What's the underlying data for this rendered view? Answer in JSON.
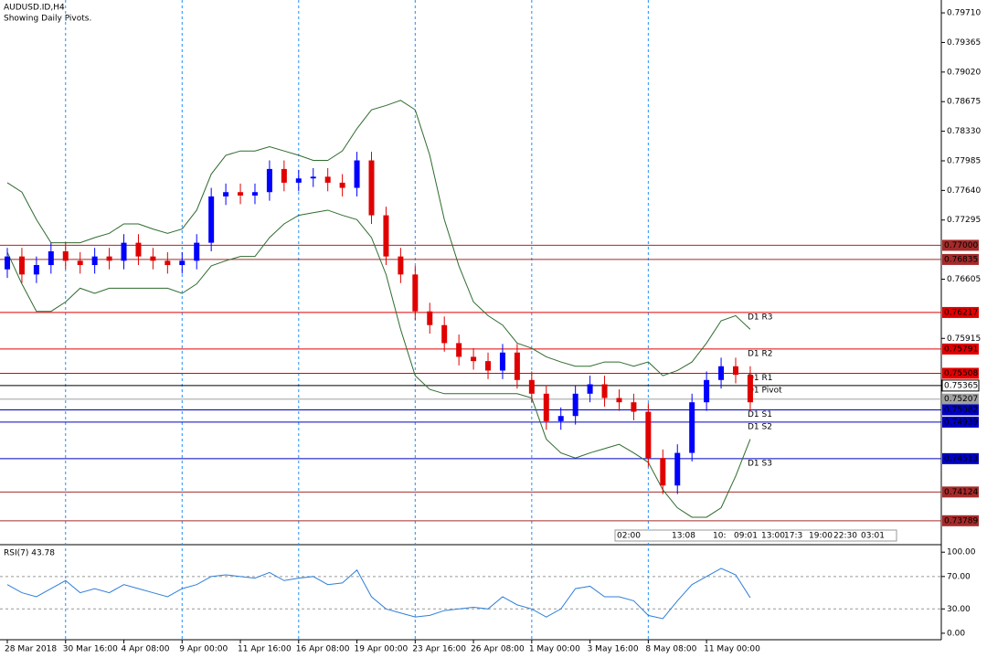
{
  "chart_data": [
    {
      "type": "candlestick",
      "title": "AUDUSD.ID,H4",
      "subtitle": "Showing Daily Pivots.",
      "categories": [
        "28 Mar 2018",
        null,
        null,
        null,
        "30 Mar 16:00",
        null,
        null,
        null,
        "4 Apr 08:00",
        null,
        null,
        null,
        "9 Apr 00:00",
        null,
        null,
        null,
        "11 Apr 16:00",
        null,
        null,
        null,
        "16 Apr 08:00",
        null,
        null,
        null,
        "19 Apr 00:00",
        null,
        null,
        null,
        "23 Apr 16:00",
        null,
        null,
        null,
        "26 Apr 08:00",
        null,
        null,
        null,
        "1 May 00:00",
        null,
        null,
        null,
        "3 May 16:00",
        null,
        null,
        null,
        "8 May 08:00",
        null,
        null,
        null,
        "11 May 00:00",
        null,
        null,
        null
      ],
      "open": [
        0.7672,
        0.7687,
        0.7666,
        0.7677,
        0.7693,
        0.7682,
        0.7677,
        0.7687,
        0.7682,
        0.7703,
        0.7687,
        0.7682,
        0.7677,
        0.7682,
        0.7703,
        0.7757,
        0.7762,
        0.7758,
        0.7762,
        0.7789,
        0.7773,
        0.7778,
        0.778,
        0.7773,
        0.7767,
        0.7799,
        0.7735,
        0.7687,
        0.7666,
        0.7623,
        0.7607,
        0.7586,
        0.757,
        0.7565,
        0.7554,
        0.7575,
        0.7543,
        0.7527,
        0.7495,
        0.7501,
        0.7527,
        0.7538,
        0.7522,
        0.7517,
        0.7506,
        0.7452,
        0.742,
        0.7458,
        0.7517,
        0.7543,
        0.7559,
        0.7549
      ],
      "high": [
        0.7697,
        0.7697,
        0.7687,
        0.7703,
        0.7703,
        0.7692,
        0.7697,
        0.7697,
        0.7713,
        0.7713,
        0.7697,
        0.7692,
        0.7692,
        0.7713,
        0.7767,
        0.7772,
        0.7772,
        0.7772,
        0.7799,
        0.7799,
        0.7788,
        0.779,
        0.779,
        0.7783,
        0.7809,
        0.7809,
        0.7745,
        0.7697,
        0.7676,
        0.7633,
        0.7617,
        0.7596,
        0.758,
        0.7575,
        0.7585,
        0.7585,
        0.7553,
        0.7537,
        0.7511,
        0.7537,
        0.7548,
        0.7548,
        0.7532,
        0.7527,
        0.7516,
        0.7462,
        0.7468,
        0.7527,
        0.7553,
        0.7569,
        0.7569,
        0.7559
      ],
      "low": [
        0.7662,
        0.7656,
        0.7656,
        0.7667,
        0.7672,
        0.7667,
        0.7667,
        0.7672,
        0.7672,
        0.7677,
        0.7672,
        0.7667,
        0.7667,
        0.7672,
        0.7693,
        0.7747,
        0.7748,
        0.7748,
        0.7752,
        0.7763,
        0.7763,
        0.7768,
        0.7763,
        0.7757,
        0.7757,
        0.7725,
        0.7677,
        0.7656,
        0.7613,
        0.7597,
        0.7576,
        0.756,
        0.7555,
        0.7544,
        0.7544,
        0.7533,
        0.7517,
        0.7485,
        0.7485,
        0.7491,
        0.7517,
        0.7512,
        0.7507,
        0.7496,
        0.7442,
        0.741,
        0.741,
        0.7448,
        0.7507,
        0.7533,
        0.7539,
        0.7507
      ],
      "close": [
        0.7687,
        0.7666,
        0.7677,
        0.7693,
        0.7682,
        0.7677,
        0.7687,
        0.7682,
        0.7703,
        0.7687,
        0.7682,
        0.7677,
        0.7682,
        0.7703,
        0.7757,
        0.7762,
        0.7758,
        0.7762,
        0.7789,
        0.7773,
        0.7778,
        0.778,
        0.7773,
        0.7767,
        0.7799,
        0.7735,
        0.7687,
        0.7666,
        0.7623,
        0.7607,
        0.7586,
        0.757,
        0.7565,
        0.7554,
        0.7575,
        0.7543,
        0.7527,
        0.7495,
        0.7501,
        0.7527,
        0.7538,
        0.7522,
        0.7517,
        0.7506,
        0.7452,
        0.742,
        0.7458,
        0.7517,
        0.7543,
        0.7559,
        0.7549,
        0.7517
      ],
      "up_color": "#0000ff",
      "down_color": "#e00000",
      "bands": {
        "color": "#2e6b2e",
        "upper": [
          0.7773,
          0.7762,
          0.773,
          0.7703,
          0.7703,
          0.7703,
          0.7709,
          0.7714,
          0.7725,
          0.7725,
          0.7719,
          0.7714,
          0.7719,
          0.7741,
          0.7783,
          0.7805,
          0.781,
          0.781,
          0.7815,
          0.781,
          0.7805,
          0.7799,
          0.7799,
          0.781,
          0.7836,
          0.7858,
          0.7863,
          0.7869,
          0.7858,
          0.7805,
          0.773,
          0.7676,
          0.7634,
          0.7618,
          0.7607,
          0.7586,
          0.758,
          0.757,
          0.7564,
          0.7559,
          0.7559,
          0.7564,
          0.7564,
          0.7559,
          0.7564,
          0.7548,
          0.7554,
          0.7564,
          0.7586,
          0.7612,
          0.7618,
          0.7602
        ],
        "lower": [
          0.7692,
          0.7655,
          0.7623,
          0.7623,
          0.7634,
          0.765,
          0.7644,
          0.765,
          0.765,
          0.765,
          0.765,
          0.765,
          0.7644,
          0.7655,
          0.7676,
          0.7682,
          0.7687,
          0.7687,
          0.7709,
          0.7725,
          0.7735,
          0.7738,
          0.7741,
          0.7735,
          0.773,
          0.7709,
          0.7666,
          0.7602,
          0.7548,
          0.7532,
          0.7527,
          0.7527,
          0.7527,
          0.7527,
          0.7527,
          0.7527,
          0.7522,
          0.7474,
          0.7458,
          0.7452,
          0.7458,
          0.7463,
          0.7468,
          0.7458,
          0.7447,
          0.7415,
          0.7394,
          0.7383,
          0.7383,
          0.7394,
          0.7431,
          0.7474
        ]
      },
      "levels": {
        "values": [
          0.77,
          0.76835,
          0.76217,
          0.75791,
          0.75508,
          0.75365,
          0.75207,
          0.75082,
          0.74939,
          0.74513,
          0.74124,
          0.73789
        ],
        "value_labels": [
          "0.77000",
          "0.76835",
          "0.76217",
          "0.75791",
          "0.75508",
          "0.75365",
          "0.75207",
          "0.75082",
          "0.74939",
          "0.74513",
          "0.74124",
          "0.73789"
        ],
        "names": [
          null,
          null,
          "D1 R3",
          "D1 R2",
          "D1 R1",
          "D1 Pivot",
          null,
          "D1 S1",
          "D1 S2",
          "D1 S3",
          null,
          null
        ],
        "colors": [
          "#a52a2a",
          "#a52a2a",
          "#e00000",
          "#e00000",
          "#e00000",
          "#000000",
          "#a0a0a0",
          "#0000c0",
          "#0000c0",
          "#0000c0",
          "#a52a2a",
          "#a52a2a"
        ]
      },
      "session_labels": [
        "02:00",
        "13:08",
        "10:",
        "09:01",
        "13:00",
        "17:3",
        "19:00",
        "22:30",
        "03:01"
      ],
      "ylim": [
        0.7351,
        0.7986
      ],
      "yticks": [
        {
          "value": 0.7971,
          "label": "0.79710"
        },
        {
          "value": 0.79365,
          "label": "0.79365"
        },
        {
          "value": 0.7902,
          "label": "0.79020"
        },
        {
          "value": 0.78675,
          "label": "0.78675"
        },
        {
          "value": 0.7833,
          "label": "0.78330"
        },
        {
          "value": 0.77985,
          "label": "0.77985"
        },
        {
          "value": 0.7764,
          "label": "0.77640"
        },
        {
          "value": 0.77295,
          "label": "0.77295"
        },
        {
          "value": 0.76605,
          "label": "0.76605"
        },
        {
          "value": 0.75915,
          "label": "0.75915"
        }
      ],
      "grid": true
    },
    {
      "type": "line",
      "title": "RSI(7) 43.78",
      "series": [
        {
          "name": "RSI(7)",
          "color": "#2f7fd8",
          "values": [
            60,
            50,
            45,
            55,
            65,
            50,
            55,
            50,
            60,
            55,
            50,
            45,
            55,
            60,
            70,
            72,
            70,
            68,
            75,
            65,
            68,
            70,
            60,
            62,
            78,
            45,
            30,
            25,
            20,
            22,
            28,
            30,
            32,
            30,
            45,
            35,
            30,
            20,
            30,
            55,
            58,
            45,
            45,
            40,
            22,
            18,
            40,
            60,
            70,
            80,
            72,
            43.78
          ]
        }
      ],
      "levels": [
        70,
        30
      ],
      "ylim": [
        -8,
        107
      ],
      "yticks": [
        {
          "value": 100,
          "label": "100.00"
        },
        {
          "value": 70,
          "label": "70.00"
        },
        {
          "value": 30,
          "label": "30.00"
        },
        {
          "value": 0,
          "label": "0.00"
        }
      ]
    }
  ]
}
